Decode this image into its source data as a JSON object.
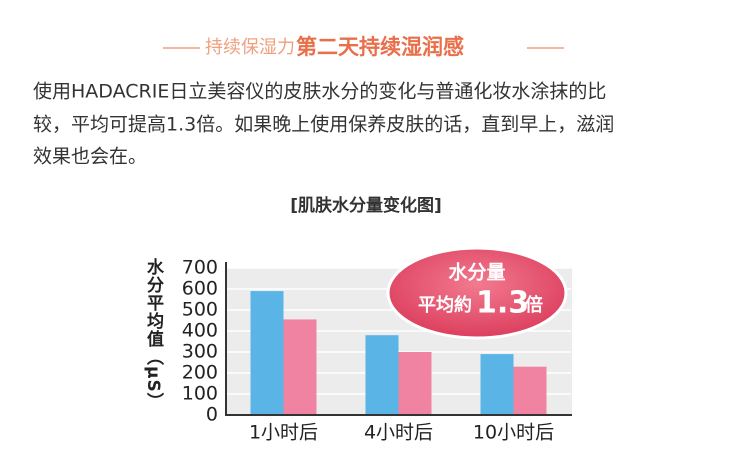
{
  "header": {
    "lead": "持续保湿力",
    "highlight": "第二天持续湿润感"
  },
  "paragraph": [
    "使用HADACRIE日立美容仪的皮肤水分的变化与普通化妆水涂抹的比",
    "较，平均可提高1.3倍。如果晚上使用保养皮肤的话，直到早上，滋润",
    "效果也会在。"
  ],
  "chart_data": {
    "type": "bar",
    "title": "[肌肤水分量变化图]",
    "y_label": "水分平均值（μS）",
    "categories": [
      "1小时后",
      "4小时后",
      "10小时后"
    ],
    "series": [
      {
        "color": "#5ab4e6",
        "values": [
          590,
          380,
          290
        ]
      },
      {
        "color": "#f083a1",
        "values": [
          455,
          300,
          230
        ]
      }
    ],
    "ylim": [
      0,
      700
    ],
    "yticks": [
      0,
      100,
      200,
      300,
      400,
      500,
      600,
      700
    ],
    "grid": true,
    "annotation": {
      "line1": "水分量",
      "prefix": "平均約",
      "number": "1.3",
      "suffix": "倍"
    }
  }
}
